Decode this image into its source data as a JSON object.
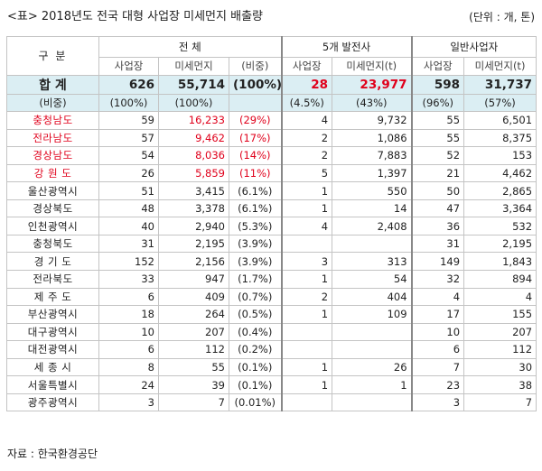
{
  "caption": {
    "title": "<표> 2018년도 전국 대형 사업장 미세먼지 배출량",
    "unit": "(단위 : 개, 톤)"
  },
  "header": {
    "category": "구  분",
    "groups": [
      "전   체",
      "5개 발전사",
      "일반사업자"
    ],
    "sub": {
      "total": [
        "사업장",
        "미세먼지",
        "(비중)"
      ],
      "power": [
        "사업장",
        "미세먼지(t)"
      ],
      "general": [
        "사업장",
        "미세먼지(t)"
      ]
    }
  },
  "total_row": {
    "label": "합  계",
    "sub_label": "(비중)",
    "values": [
      "626",
      "55,714",
      "(100%)",
      "28",
      "23,977",
      "598",
      "31,737"
    ],
    "shares": [
      "(100%)",
      "(100%)",
      "",
      "(4.5%)",
      "(43%)",
      "(96%)",
      "(57%)"
    ]
  },
  "rows": [
    {
      "region": "충청남도",
      "c1": "59",
      "c2": "16,233",
      "c3": "(29%)",
      "c4": "4",
      "c5": "9,732",
      "c6": "55",
      "c7": "6,501"
    },
    {
      "region": "전라남도",
      "c1": "57",
      "c2": "9,462",
      "c3": "(17%)",
      "c4": "2",
      "c5": "1,086",
      "c6": "55",
      "c7": "8,375"
    },
    {
      "region": "경상남도",
      "c1": "54",
      "c2": "8,036",
      "c3": "(14%)",
      "c4": "2",
      "c5": "7,883",
      "c6": "52",
      "c7": "153"
    },
    {
      "region": "강 원 도",
      "c1": "26",
      "c2": "5,859",
      "c3": "(11%)",
      "c4": "5",
      "c5": "1,397",
      "c6": "21",
      "c7": "4,462"
    },
    {
      "region": "울산광역시",
      "c1": "51",
      "c2": "3,415",
      "c3": "(6.1%)",
      "c4": "1",
      "c5": "550",
      "c6": "50",
      "c7": "2,865"
    },
    {
      "region": "경상북도",
      "c1": "48",
      "c2": "3,378",
      "c3": "(6.1%)",
      "c4": "1",
      "c5": "14",
      "c6": "47",
      "c7": "3,364"
    },
    {
      "region": "인천광역시",
      "c1": "40",
      "c2": "2,940",
      "c3": "(5.3%)",
      "c4": "4",
      "c5": "2,408",
      "c6": "36",
      "c7": "532"
    },
    {
      "region": "충청북도",
      "c1": "31",
      "c2": "2,195",
      "c3": "(3.9%)",
      "c4": "",
      "c5": "",
      "c6": "31",
      "c7": "2,195"
    },
    {
      "region": "경 기 도",
      "c1": "152",
      "c2": "2,156",
      "c3": "(3.9%)",
      "c4": "3",
      "c5": "313",
      "c6": "149",
      "c7": "1,843"
    },
    {
      "region": "전라북도",
      "c1": "33",
      "c2": "947",
      "c3": "(1.7%)",
      "c4": "1",
      "c5": "54",
      "c6": "32",
      "c7": "894"
    },
    {
      "region": "제 주 도",
      "c1": "6",
      "c2": "409",
      "c3": "(0.7%)",
      "c4": "2",
      "c5": "404",
      "c6": "4",
      "c7": "4"
    },
    {
      "region": "부산광역시",
      "c1": "18",
      "c2": "264",
      "c3": "(0.5%)",
      "c4": "1",
      "c5": "109",
      "c6": "17",
      "c7": "155"
    },
    {
      "region": "대구광역시",
      "c1": "10",
      "c2": "207",
      "c3": "(0.4%)",
      "c4": "",
      "c5": "",
      "c6": "10",
      "c7": "207"
    },
    {
      "region": "대전광역시",
      "c1": "6",
      "c2": "112",
      "c3": "(0.2%)",
      "c4": "",
      "c5": "",
      "c6": "6",
      "c7": "112"
    },
    {
      "region": "세 종 시",
      "c1": "8",
      "c2": "55",
      "c3": "(0.1%)",
      "c4": "1",
      "c5": "26",
      "c6": "7",
      "c7": "30"
    },
    {
      "region": "서울특별시",
      "c1": "24",
      "c2": "39",
      "c3": "(0.1%)",
      "c4": "1",
      "c5": "1",
      "c6": "23",
      "c7": "38"
    },
    {
      "region": "광주광역시",
      "c1": "3",
      "c2": "7",
      "c3": "(0.01%)",
      "c4": "",
      "c5": "",
      "c6": "3",
      "c7": "7"
    }
  ],
  "highlight_color": "#e0001b",
  "total_bg": "#dbeef3",
  "source": "자료 : 한국환경공단"
}
